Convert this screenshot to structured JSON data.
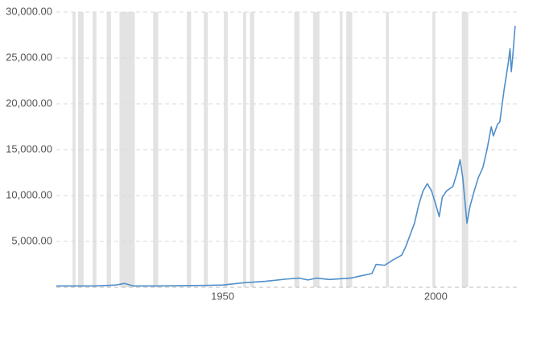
{
  "chart_data": {
    "type": "line",
    "x": [
      1911,
      1915,
      1920,
      1925,
      1927,
      1929,
      1935,
      1945,
      1950,
      1955,
      1960,
      1965,
      1968,
      1970,
      1972,
      1975,
      1980,
      1982,
      1985,
      1986,
      1988,
      1990,
      1992,
      1993,
      1995,
      1996,
      1997,
      1998,
      1999,
      2000,
      2000.8,
      2001.5,
      2002.5,
      2004,
      2005,
      2005.7,
      2006.3,
      2007,
      2007.3,
      2008,
      2009,
      2010,
      2011,
      2012,
      2013,
      2013.5,
      2014.5,
      2015,
      2016,
      2017,
      2017.4,
      2017.7,
      2018.1,
      2018.6
    ],
    "values": [
      150,
      150,
      150,
      250,
      420,
      150,
      150,
      200,
      250,
      500,
      650,
      900,
      1000,
      800,
      1000,
      850,
      1000,
      1200,
      1500,
      2500,
      2400,
      3000,
      3500,
      4500,
      7000,
      9000,
      10500,
      11300,
      10500,
      9000,
      7700,
      9800,
      10500,
      11000,
      12500,
      13900,
      12000,
      8500,
      7000,
      8800,
      10500,
      12000,
      13000,
      15000,
      17500,
      16500,
      17800,
      18000,
      21500,
      24500,
      26000,
      23500,
      25500,
      28500
    ],
    "color": "#4f8fca",
    "shaded_ranges": [
      [
        1914.8,
        1915.5
      ],
      [
        1916.1,
        1917.4
      ],
      [
        1919.5,
        1920.4
      ],
      [
        1922.8,
        1923.8
      ],
      [
        1925.8,
        1929.4
      ],
      [
        1933.7,
        1934.9
      ],
      [
        1941.6,
        1942.6
      ],
      [
        1945.6,
        1946.5
      ],
      [
        1950.3,
        1951.2
      ],
      [
        1954.8,
        1955.5
      ],
      [
        1956.4,
        1957.4
      ],
      [
        1966.8,
        1968.0
      ],
      [
        1971.2,
        1972.7
      ],
      [
        1977.5,
        1978.1
      ],
      [
        1979.0,
        1980.4
      ],
      [
        1988.3,
        1989.0
      ],
      [
        1999.2,
        1999.9
      ],
      [
        2006.1,
        2007.6
      ]
    ],
    "shade_color": "#e3e3e3",
    "xlim": [
      1911,
      2019
    ],
    "xticks": [
      1950,
      2000
    ],
    "ylim": [
      0,
      30000
    ],
    "yticks": [
      {
        "value": 5000,
        "label": "5,000.00"
      },
      {
        "value": 10000,
        "label": "10,000.00"
      },
      {
        "value": 15000,
        "label": "15,000.00"
      },
      {
        "value": 20000,
        "label": "20,000.00"
      },
      {
        "value": 25000,
        "label": "25,000.00"
      },
      {
        "value": 30000,
        "label": "30,000.00"
      }
    ],
    "grid": true
  }
}
